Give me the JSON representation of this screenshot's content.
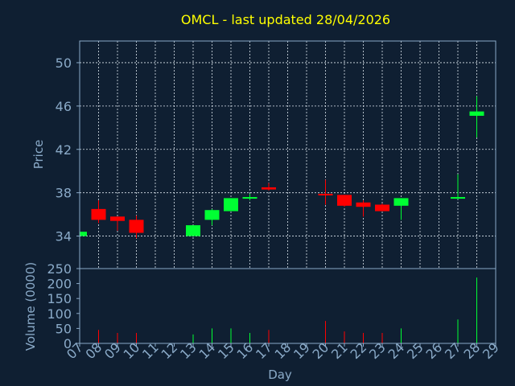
{
  "chart_data": {
    "type": "candlestick",
    "title": "OMCL - last updated 28/04/2026",
    "xlabel": "Day",
    "price_panel": {
      "ylabel": "Price",
      "ylim": [
        31,
        52
      ],
      "yticks": [
        34,
        38,
        42,
        46,
        50
      ],
      "grid": true
    },
    "volume_panel": {
      "ylabel": "Volume (0000)",
      "ylim": [
        0,
        250
      ],
      "yticks": [
        0,
        50,
        100,
        150,
        200,
        250
      ],
      "grid": false
    },
    "x_ticks": [
      "07",
      "08",
      "09",
      "10",
      "11",
      "12",
      "13",
      "14",
      "15",
      "16",
      "17",
      "18",
      "19",
      "20",
      "21",
      "22",
      "23",
      "24",
      "25",
      "26",
      "27",
      "28",
      "29"
    ],
    "colors": {
      "up": "#00ff33",
      "down": "#ff0000",
      "title": "#ffff00",
      "axis_text": "#8aaac8",
      "background": "#0f1f32",
      "grid": "#dde6ee"
    },
    "candles": [
      {
        "day": "07",
        "open": 34.0,
        "high": 34.5,
        "low": 34.0,
        "close": 34.4,
        "volume": 5
      },
      {
        "day": "08",
        "open": 36.5,
        "high": 37.3,
        "low": 35.2,
        "close": 35.5,
        "volume": 45
      },
      {
        "day": "09",
        "open": 35.8,
        "high": 35.8,
        "low": 34.5,
        "close": 35.4,
        "volume": 35
      },
      {
        "day": "10",
        "open": 35.5,
        "high": 35.9,
        "low": 33.8,
        "close": 34.3,
        "volume": 35
      },
      {
        "day": "13",
        "open": 34.0,
        "high": 35.0,
        "low": 34.0,
        "close": 35.0,
        "volume": 30
      },
      {
        "day": "14",
        "open": 35.5,
        "high": 36.5,
        "low": 35.0,
        "close": 36.4,
        "volume": 50
      },
      {
        "day": "15",
        "open": 36.3,
        "high": 37.5,
        "low": 36.3,
        "close": 37.5,
        "volume": 50
      },
      {
        "day": "16",
        "open": 37.5,
        "high": 37.9,
        "low": 37.3,
        "close": 37.6,
        "volume": 35
      },
      {
        "day": "17",
        "open": 38.5,
        "high": 38.9,
        "low": 38.2,
        "close": 38.3,
        "volume": 45
      },
      {
        "day": "20",
        "open": 37.9,
        "high": 39.2,
        "low": 36.9,
        "close": 37.8,
        "volume": 75
      },
      {
        "day": "21",
        "open": 37.8,
        "high": 37.8,
        "low": 36.7,
        "close": 36.8,
        "volume": 40
      },
      {
        "day": "22",
        "open": 37.1,
        "high": 37.3,
        "low": 35.8,
        "close": 36.7,
        "volume": 35
      },
      {
        "day": "23",
        "open": 36.9,
        "high": 37.0,
        "low": 36.3,
        "close": 36.3,
        "volume": 35
      },
      {
        "day": "24",
        "open": 36.8,
        "high": 37.5,
        "low": 35.5,
        "close": 37.5,
        "volume": 50
      },
      {
        "day": "27",
        "open": 37.5,
        "high": 39.7,
        "low": 37.4,
        "close": 37.6,
        "volume": 80
      },
      {
        "day": "28",
        "open": 45.1,
        "high": 46.9,
        "low": 43.1,
        "close": 45.5,
        "volume": 220
      }
    ]
  }
}
